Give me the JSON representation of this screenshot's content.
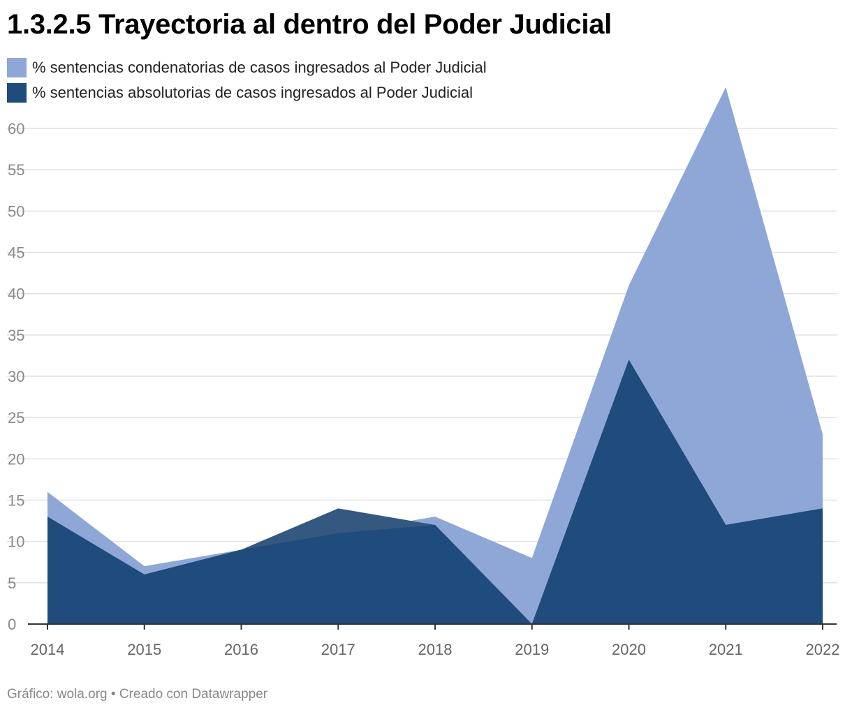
{
  "title": "1.3.2.5 Trayectoria al dentro del Poder Judicial",
  "footer": "Gráfico: wola.org • Creado con Datawrapper",
  "colors": {
    "condenatorias": "#8fa7d7",
    "absolutorias": "#1f4b7d",
    "overlap_dark": "#34587f"
  },
  "chart_data": {
    "type": "area",
    "title": "1.3.2.5 Trayectoria al dentro del Poder Judicial",
    "x": [
      2014,
      2015,
      2016,
      2017,
      2018,
      2019,
      2020,
      2021,
      2022
    ],
    "series": [
      {
        "name": "% sentencias condenatorias de casos ingresados al Poder Judicial",
        "values": [
          16,
          7,
          9,
          11,
          13,
          8,
          41,
          65,
          23
        ]
      },
      {
        "name": "% sentencias absolutorias de casos ingresados al Poder Judicial",
        "values": [
          13,
          6,
          9,
          14,
          12,
          0,
          32,
          12,
          14
        ]
      }
    ],
    "yticks": [
      0,
      5,
      10,
      15,
      20,
      25,
      30,
      35,
      40,
      45,
      50,
      55,
      60
    ],
    "ylim": [
      0,
      60
    ],
    "grid": true,
    "legend_position": "top-left",
    "xlabel": "",
    "ylabel": ""
  }
}
